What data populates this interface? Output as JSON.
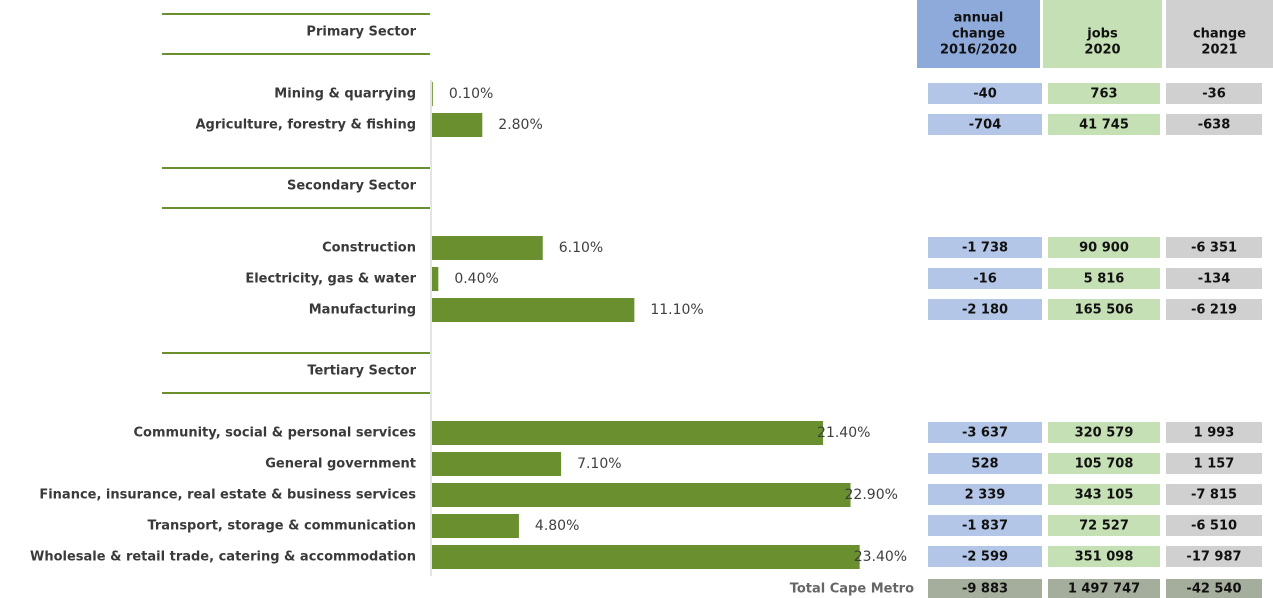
{
  "chart_data": {
    "type": "barh",
    "color": "#6a8f2e",
    "xlim": [
      0,
      25
    ],
    "groups": [
      {
        "name": "Primary Sector",
        "categories": [
          "Mining & quarrying",
          "Agriculture, forestry & fishing"
        ],
        "values": [
          0.1,
          2.8
        ],
        "value_labels": [
          "0.10%",
          "2.80%"
        ]
      },
      {
        "name": "Secondary Sector",
        "categories": [
          "Construction",
          "Electricity, gas & water",
          "Manufacturing"
        ],
        "values": [
          6.1,
          0.4,
          11.1
        ],
        "value_labels": [
          "6.10%",
          "0.40%",
          "11.10%"
        ]
      },
      {
        "name": "Tertiary Sector",
        "categories": [
          "Community, social & personal services",
          "General government",
          "Finance, insurance, real estate & business services",
          "Transport, storage & communication",
          "Wholesale & retail trade, catering & accommodation"
        ],
        "values": [
          21.4,
          7.1,
          22.9,
          4.8,
          23.4
        ],
        "value_labels": [
          "21.40%",
          "7.10%",
          "22.90%",
          "4.80%",
          "23.40%"
        ]
      }
    ]
  },
  "table": {
    "headers": [
      [
        "annual",
        "change",
        "2016/2020"
      ],
      [
        "jobs",
        "2020"
      ],
      [
        "change",
        "2021"
      ]
    ],
    "groups": [
      [
        [
          "-40",
          "763",
          "-36"
        ],
        [
          "-704",
          "41 745",
          "-638"
        ]
      ],
      [
        [
          "-1 738",
          "90 900",
          "-6 351"
        ],
        [
          "-16",
          "5 816",
          "-134"
        ],
        [
          "-2 180",
          "165 506",
          "-6 219"
        ]
      ],
      [
        [
          "-3 637",
          "320 579",
          "1 993"
        ],
        [
          "528",
          "105 708",
          "1 157"
        ],
        [
          "2 339",
          "343 105",
          "-7 815"
        ],
        [
          "-1 837",
          "72 527",
          "-6 510"
        ],
        [
          "-2 599",
          "351 098",
          "-17 987"
        ]
      ]
    ],
    "total": {
      "label": "Total Cape Metro",
      "cells": [
        "-9 883",
        "1 497 747",
        "-42 540"
      ]
    }
  }
}
